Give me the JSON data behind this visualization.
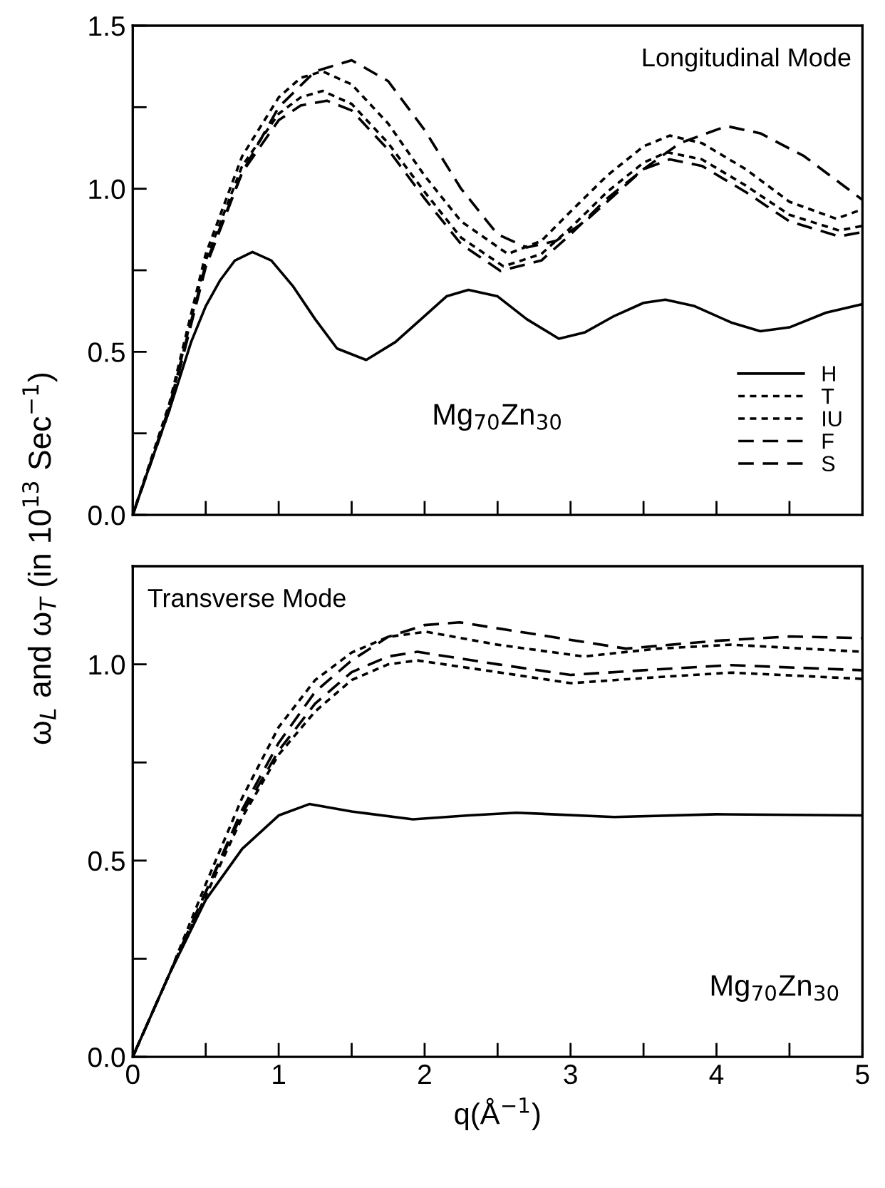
{
  "chart_data": [
    {
      "type": "line",
      "annotations": [
        "Longitudinal Mode",
        "Mg$_{70}$Zn$_{30}$"
      ],
      "ylabel": "ω$_{L}$ and ω$_{T}$ (in 10$^{13}$ Sec$^{−1}$)",
      "xlim": [
        0,
        5
      ],
      "ylim": [
        0,
        1.5
      ],
      "xticks": [
        {
          "value": 0,
          "label": null
        },
        {
          "value": 0.5,
          "label": null
        },
        {
          "value": 1,
          "label": null
        },
        {
          "value": 1.5,
          "label": null
        },
        {
          "value": 2,
          "label": null
        },
        {
          "value": 2.5,
          "label": null
        },
        {
          "value": 3,
          "label": null
        },
        {
          "value": 3.5,
          "label": null
        },
        {
          "value": 4,
          "label": null
        },
        {
          "value": 4.5,
          "label": null
        },
        {
          "value": 5,
          "label": null
        }
      ],
      "yticks": [
        {
          "value": 0,
          "label": "0.0"
        },
        {
          "value": 0.25,
          "label": null
        },
        {
          "value": 0.5,
          "label": "0.5"
        },
        {
          "value": 0.75,
          "label": null
        },
        {
          "value": 1,
          "label": "1.0"
        },
        {
          "value": 1.25,
          "label": null
        },
        {
          "value": 1.5,
          "label": "1.5"
        }
      ],
      "tick_labels": "y",
      "grid": false,
      "legend": "bottom right",
      "series": [
        {
          "name": "H",
          "color": "#000000",
          "line_style": "solid",
          "x": [
            0,
            0.1,
            0.25,
            0.4,
            0.5,
            0.6,
            0.7,
            0.82,
            0.95,
            1.1,
            1.25,
            1.4,
            1.6,
            1.8,
            2.0,
            2.15,
            2.3,
            2.5,
            2.7,
            2.92,
            3.1,
            3.3,
            3.5,
            3.65,
            3.85,
            4.1,
            4.3,
            4.5,
            4.75,
            5.0
          ],
          "values": [
            0,
            0.13,
            0.32,
            0.53,
            0.64,
            0.72,
            0.78,
            0.806,
            0.78,
            0.7,
            0.6,
            0.51,
            0.475,
            0.53,
            0.61,
            0.67,
            0.69,
            0.67,
            0.6,
            0.54,
            0.56,
            0.61,
            0.65,
            0.66,
            0.64,
            0.59,
            0.563,
            0.575,
            0.62,
            0.646
          ]
        },
        {
          "name": "T",
          "color": "#000000",
          "line_style": "dotted",
          "x": [
            0,
            0.25,
            0.5,
            0.75,
            1.0,
            1.15,
            1.3,
            1.5,
            1.75,
            2.0,
            2.25,
            2.57,
            2.8,
            3.0,
            3.25,
            3.5,
            3.68,
            3.9,
            4.2,
            4.5,
            4.82,
            5.0
          ],
          "values": [
            0,
            0.34,
            0.8,
            1.1,
            1.28,
            1.34,
            1.36,
            1.32,
            1.2,
            1.04,
            0.9,
            0.8,
            0.84,
            0.93,
            1.04,
            1.13,
            1.163,
            1.14,
            1.06,
            0.96,
            0.908,
            0.937
          ]
        },
        {
          "name": "IU",
          "color": "#000000",
          "line_style": "dotted",
          "x": [
            0,
            0.25,
            0.5,
            0.75,
            1.0,
            1.15,
            1.3,
            1.5,
            1.75,
            2.0,
            2.25,
            2.54,
            2.8,
            3.0,
            3.25,
            3.5,
            3.66,
            3.9,
            4.2,
            4.5,
            4.84,
            5.0
          ],
          "values": [
            0,
            0.33,
            0.78,
            1.07,
            1.23,
            1.28,
            1.3,
            1.26,
            1.14,
            0.99,
            0.85,
            0.762,
            0.8,
            0.88,
            0.99,
            1.08,
            1.112,
            1.09,
            1.01,
            0.92,
            0.872,
            0.886
          ]
        },
        {
          "name": "F",
          "color": "#000000",
          "line_style": "dashed",
          "x": [
            0,
            0.25,
            0.5,
            0.75,
            1.0,
            1.15,
            1.33,
            1.5,
            1.75,
            2.0,
            2.25,
            2.52,
            2.8,
            3.0,
            3.25,
            3.5,
            3.68,
            3.9,
            4.2,
            4.5,
            4.84,
            5.0
          ],
          "values": [
            0,
            0.33,
            0.77,
            1.05,
            1.21,
            1.255,
            1.27,
            1.24,
            1.12,
            0.97,
            0.83,
            0.748,
            0.78,
            0.86,
            0.97,
            1.06,
            1.09,
            1.07,
            0.99,
            0.9,
            0.854,
            0.867
          ]
        },
        {
          "name": "S",
          "color": "#000000",
          "line_style": "dashed",
          "x": [
            0,
            0.25,
            0.5,
            0.75,
            1.0,
            1.25,
            1.5,
            1.75,
            2.0,
            2.25,
            2.5,
            2.7,
            2.9,
            3.1,
            3.3,
            3.5,
            3.75,
            4.07,
            4.3,
            4.6,
            5.0
          ],
          "values": [
            0,
            0.32,
            0.76,
            1.05,
            1.25,
            1.36,
            1.394,
            1.33,
            1.18,
            1.0,
            0.86,
            0.82,
            0.84,
            0.9,
            0.98,
            1.06,
            1.14,
            1.192,
            1.17,
            1.1,
            0.966
          ]
        }
      ]
    },
    {
      "type": "line",
      "annotations": [
        "Transverse Mode",
        "Mg$_{70}$Zn$_{30}$"
      ],
      "xlabel": "q(Å$^{−1}$)",
      "xlim": [
        0,
        5
      ],
      "ylim": [
        0,
        1.25
      ],
      "xticks": [
        0,
        {
          "value": 0.5,
          "label": null
        },
        1,
        {
          "value": 1.5,
          "label": null
        },
        2,
        {
          "value": 2.5,
          "label": null
        },
        3,
        {
          "value": 3.5,
          "label": null
        },
        4,
        {
          "value": 4.5,
          "label": null
        },
        5
      ],
      "yticks": [
        {
          "value": 0,
          "label": "0.0"
        },
        {
          "value": 0.25,
          "label": null
        },
        {
          "value": 0.5,
          "label": "0.5"
        },
        {
          "value": 0.75,
          "label": null
        },
        {
          "value": 1,
          "label": "1.0"
        }
      ],
      "grid": false,
      "series": [
        {
          "color": "#000000",
          "line_style": "solid",
          "x": [
            0,
            0.25,
            0.5,
            0.75,
            1.0,
            1.21,
            1.5,
            1.92,
            2.3,
            2.63,
            3.3,
            4.0,
            5.0
          ],
          "values": [
            0,
            0.21,
            0.4,
            0.53,
            0.615,
            0.644,
            0.625,
            0.605,
            0.615,
            0.622,
            0.611,
            0.618,
            0.615
          ]
        },
        {
          "color": "#000000",
          "line_style": "dotted",
          "x": [
            0,
            0.25,
            0.5,
            0.75,
            1.0,
            1.25,
            1.5,
            1.75,
            2.01,
            2.5,
            3.09,
            3.6,
            4.1,
            5.0
          ],
          "values": [
            0,
            0.21,
            0.44,
            0.66,
            0.84,
            0.96,
            1.03,
            1.07,
            1.083,
            1.05,
            1.02,
            1.04,
            1.05,
            1.032
          ]
        },
        {
          "color": "#000000",
          "line_style": "dotted",
          "x": [
            0,
            0.25,
            0.5,
            0.75,
            1.0,
            1.25,
            1.5,
            1.75,
            1.95,
            2.5,
            3.0,
            3.5,
            4.1,
            5.0
          ],
          "values": [
            0,
            0.21,
            0.41,
            0.61,
            0.77,
            0.88,
            0.96,
            1.0,
            1.01,
            0.98,
            0.952,
            0.965,
            0.979,
            0.963
          ]
        },
        {
          "color": "#000000",
          "line_style": "dashed",
          "x": [
            0,
            0.25,
            0.5,
            0.75,
            1.0,
            1.25,
            1.5,
            1.75,
            1.95,
            2.5,
            3.0,
            3.5,
            4.1,
            5.0
          ],
          "values": [
            0,
            0.21,
            0.42,
            0.62,
            0.78,
            0.9,
            0.98,
            1.02,
            1.032,
            1.0,
            0.973,
            0.985,
            0.998,
            0.985
          ]
        },
        {
          "color": "#000000",
          "line_style": "dashed",
          "x": [
            0,
            0.25,
            0.5,
            0.75,
            1.0,
            1.25,
            1.5,
            1.75,
            2.0,
            2.24,
            2.7,
            3.38,
            4.0,
            4.5,
            5.0
          ],
          "values": [
            0,
            0.21,
            0.42,
            0.63,
            0.8,
            0.93,
            1.01,
            1.07,
            1.1,
            1.107,
            1.08,
            1.04,
            1.06,
            1.071,
            1.067
          ]
        }
      ]
    }
  ]
}
